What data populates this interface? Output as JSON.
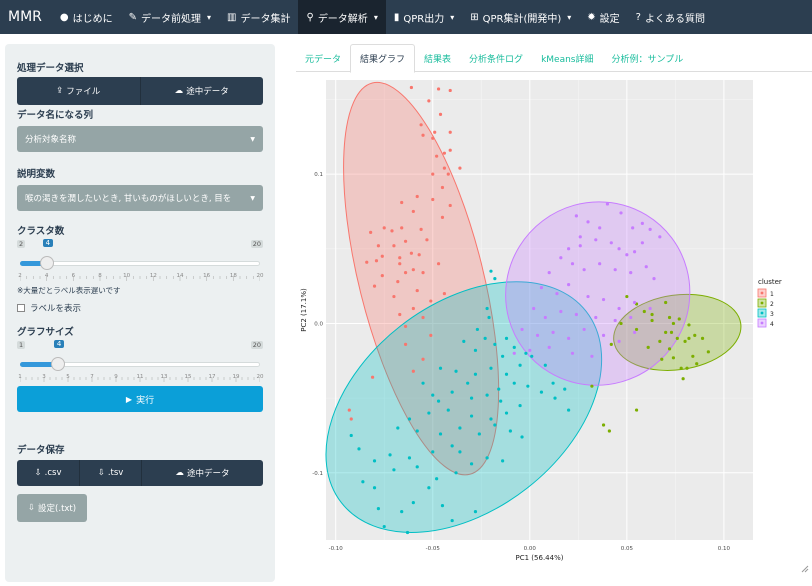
{
  "navbar": {
    "brand": "MMR",
    "items": [
      {
        "icon": "●",
        "icon_name": "play-circle-icon",
        "label": "はじめに",
        "caret": false,
        "active": false
      },
      {
        "icon": "✎",
        "icon_name": "wrench-icon",
        "label": "データ前処理",
        "caret": true,
        "active": false
      },
      {
        "icon": "▥",
        "icon_name": "area-chart-icon",
        "label": "データ集計",
        "caret": false,
        "active": false
      },
      {
        "icon": "⚲",
        "icon_name": "search-icon",
        "label": "データ解析",
        "caret": true,
        "active": true
      },
      {
        "icon": "▮",
        "icon_name": "file-icon",
        "label": "QPR出力",
        "caret": true,
        "active": false
      },
      {
        "icon": "⊞",
        "icon_name": "table-icon",
        "label": "QPR集計(開発中)",
        "caret": true,
        "active": false
      },
      {
        "icon": "✹",
        "icon_name": "gear-icon",
        "label": "設定",
        "caret": false,
        "active": false
      },
      {
        "icon": "?",
        "icon_name": "question-icon",
        "label": "よくある質問",
        "caret": false,
        "active": false
      }
    ]
  },
  "sidebar": {
    "data_select_label": "処理データ選択",
    "file_button": "ファイル",
    "midway_button": "途中データ",
    "name_column_label": "データ名になる列",
    "name_column_value": "分析対象名称",
    "explanatory_label": "説明変数",
    "explanatory_value": "喉の渇きを潤したいとき, 甘いものがほしいとき, 目を",
    "cluster_label": "クラスタ数",
    "cluster_slider": {
      "min": "2",
      "max": "20",
      "value": "4",
      "value_num": 4,
      "min_num": 2,
      "max_num": 20,
      "ticks": [
        "2",
        "4",
        "6",
        "8",
        "10",
        "12",
        "14",
        "16",
        "18",
        "20"
      ]
    },
    "note": "※大量だとラベル表示遅いです",
    "show_labels": "ラベルを表示",
    "graph_size_label": "グラフサイズ",
    "size_slider": {
      "min": "1",
      "max": "20",
      "value": "4",
      "value_num": 4,
      "min_num": 1,
      "max_num": 20,
      "ticks": [
        "1",
        "3",
        "5",
        "7",
        "9",
        "11",
        "13",
        "15",
        "17",
        "19",
        "20"
      ]
    },
    "run_button": "実行",
    "save_label": "データ保存",
    "csv_button": ".csv",
    "tsv_button": ".tsv",
    "save_midway_button": "途中データ",
    "settings_button": "設定(.txt)"
  },
  "tabs": [
    {
      "label": "元データ",
      "active": false
    },
    {
      "label": "結果グラフ",
      "active": true
    },
    {
      "label": "結果表",
      "active": false
    },
    {
      "label": "分析条件ログ",
      "active": false
    },
    {
      "label": "kMeans詳細",
      "active": false
    },
    {
      "label": "分析例：サンプル",
      "active": false
    }
  ],
  "chart_data": {
    "type": "scatter",
    "xlabel": "PC1 (56.44%)",
    "ylabel": "PC2 (17.1%)",
    "xlim": [
      -0.105,
      0.115
    ],
    "ylim": [
      -0.145,
      0.163
    ],
    "xticks": [
      -0.1,
      -0.05,
      0.0,
      0.05,
      0.1
    ],
    "xtick_labels": [
      "-0.10",
      "-0.05",
      "0.00",
      "0.05",
      "0.10"
    ],
    "yticks": [
      -0.1,
      0.0,
      0.1
    ],
    "ytick_labels": [
      "-0.1",
      "0.0",
      "0.1"
    ],
    "grid": true,
    "legend": {
      "title": "cluster",
      "position": "right",
      "entries": [
        "1",
        "2",
        "3",
        "4"
      ]
    },
    "series": [
      {
        "name": "1",
        "color": "#F8766D",
        "ellipse": {
          "cx": -0.056,
          "cy": 0.03,
          "rx": 0.032,
          "ry": 0.135,
          "angle": -14
        },
        "points": [
          [
            -0.061,
            0.158
          ],
          [
            -0.047,
            0.157
          ],
          [
            -0.041,
            0.156
          ],
          [
            -0.052,
            0.149
          ],
          [
            -0.046,
            0.14
          ],
          [
            -0.056,
            0.133
          ],
          [
            -0.049,
            0.128
          ],
          [
            -0.05,
            0.124
          ],
          [
            -0.055,
            0.126
          ],
          [
            -0.041,
            0.128
          ],
          [
            -0.044,
            0.114
          ],
          [
            -0.041,
            0.116
          ],
          [
            -0.048,
            0.112
          ],
          [
            -0.036,
            0.104
          ],
          [
            -0.044,
            0.104
          ],
          [
            -0.05,
            0.1
          ],
          [
            -0.042,
            0.1
          ],
          [
            -0.045,
            0.091
          ],
          [
            -0.058,
            0.085
          ],
          [
            -0.066,
            0.081
          ],
          [
            -0.05,
            0.083
          ],
          [
            -0.041,
            0.079
          ],
          [
            -0.06,
            0.075
          ],
          [
            -0.075,
            0.064
          ],
          [
            -0.082,
            0.061
          ],
          [
            -0.071,
            0.062
          ],
          [
            -0.066,
            0.064
          ],
          [
            -0.056,
            0.063
          ],
          [
            -0.064,
            0.055
          ],
          [
            -0.07,
            0.052
          ],
          [
            -0.078,
            0.052
          ],
          [
            -0.061,
            0.047
          ],
          [
            -0.076,
            0.045
          ],
          [
            -0.057,
            0.046
          ],
          [
            -0.047,
            0.04
          ],
          [
            -0.067,
            0.044
          ],
          [
            -0.079,
            0.042
          ],
          [
            -0.084,
            0.041
          ],
          [
            -0.067,
            0.04
          ],
          [
            -0.06,
            0.036
          ],
          [
            -0.055,
            0.034
          ],
          [
            -0.064,
            0.034
          ],
          [
            -0.076,
            0.032
          ],
          [
            -0.068,
            0.028
          ],
          [
            -0.08,
            0.025
          ],
          [
            -0.058,
            0.022
          ],
          [
            -0.07,
            0.018
          ],
          [
            -0.051,
            0.015
          ],
          [
            -0.044,
            0.02
          ],
          [
            -0.06,
            0.01
          ],
          [
            -0.067,
            0.006
          ],
          [
            -0.055,
            0.004
          ],
          [
            -0.064,
            -0.002
          ],
          [
            -0.051,
            -0.008
          ],
          [
            -0.064,
            -0.014
          ],
          [
            -0.055,
            -0.024
          ],
          [
            -0.081,
            -0.036
          ],
          [
            -0.06,
            -0.032
          ],
          [
            -0.093,
            -0.058
          ],
          [
            -0.092,
            -0.064
          ],
          [
            -0.045,
            0.071
          ],
          [
            -0.053,
            0.056
          ]
        ]
      },
      {
        "name": "2",
        "color": "#7CAE00",
        "ellipse": {
          "cx": 0.076,
          "cy": -0.006,
          "rx": 0.033,
          "ry": 0.025,
          "angle": -8
        },
        "points": [
          [
            0.05,
            0.018
          ],
          [
            0.055,
            0.013
          ],
          [
            0.059,
            0.008
          ],
          [
            0.063,
            0.006
          ],
          [
            0.063,
            0.002
          ],
          [
            0.07,
            0.014
          ],
          [
            0.072,
            0.004
          ],
          [
            0.074,
            0.0
          ],
          [
            0.077,
            0.003
          ],
          [
            0.082,
            -0.001
          ],
          [
            0.082,
            -0.01
          ],
          [
            0.07,
            -0.006
          ],
          [
            0.067,
            -0.012
          ],
          [
            0.073,
            -0.006
          ],
          [
            0.076,
            -0.01
          ],
          [
            0.08,
            -0.012
          ],
          [
            0.085,
            -0.008
          ],
          [
            0.089,
            -0.01
          ],
          [
            0.072,
            -0.017
          ],
          [
            0.074,
            -0.023
          ],
          [
            0.078,
            -0.03
          ],
          [
            0.081,
            -0.03
          ],
          [
            0.086,
            -0.027
          ],
          [
            0.092,
            -0.019
          ],
          [
            0.055,
            -0.004
          ],
          [
            0.061,
            -0.016
          ],
          [
            0.068,
            -0.024
          ],
          [
            0.047,
            0.0
          ],
          [
            0.042,
            -0.014
          ],
          [
            0.055,
            -0.058
          ],
          [
            0.038,
            -0.068
          ],
          [
            0.041,
            -0.072
          ],
          [
            0.032,
            -0.042
          ],
          [
            0.079,
            -0.037
          ],
          [
            0.084,
            -0.022
          ]
        ]
      },
      {
        "name": "3",
        "color": "#00BFC4",
        "ellipse": {
          "cx": -0.034,
          "cy": -0.056,
          "rx": 0.053,
          "ry": 0.104,
          "angle": 52
        },
        "points": [
          [
            -0.02,
            0.035
          ],
          [
            -0.018,
            0.03
          ],
          [
            -0.022,
            0.01
          ],
          [
            -0.027,
            -0.004
          ],
          [
            -0.021,
            0.004
          ],
          [
            -0.023,
            -0.01
          ],
          [
            -0.034,
            -0.012
          ],
          [
            -0.028,
            -0.018
          ],
          [
            -0.018,
            -0.014
          ],
          [
            -0.012,
            -0.01
          ],
          [
            -0.008,
            -0.016
          ],
          [
            -0.002,
            -0.02
          ],
          [
            0.001,
            -0.022
          ],
          [
            0.008,
            -0.028
          ],
          [
            -0.005,
            -0.028
          ],
          [
            -0.012,
            -0.034
          ],
          [
            -0.02,
            -0.03
          ],
          [
            -0.028,
            -0.034
          ],
          [
            -0.038,
            -0.032
          ],
          [
            -0.046,
            -0.03
          ],
          [
            -0.055,
            -0.04
          ],
          [
            -0.05,
            -0.048
          ],
          [
            -0.04,
            -0.046
          ],
          [
            -0.03,
            -0.05
          ],
          [
            -0.022,
            -0.048
          ],
          [
            -0.016,
            -0.044
          ],
          [
            -0.008,
            -0.04
          ],
          [
            -0.001,
            -0.042
          ],
          [
            0.006,
            -0.046
          ],
          [
            0.012,
            -0.04
          ],
          [
            0.018,
            -0.044
          ],
          [
            -0.005,
            -0.055
          ],
          [
            -0.012,
            -0.06
          ],
          [
            -0.02,
            -0.064
          ],
          [
            -0.03,
            -0.062
          ],
          [
            -0.042,
            -0.058
          ],
          [
            -0.052,
            -0.06
          ],
          [
            -0.062,
            -0.064
          ],
          [
            -0.068,
            -0.07
          ],
          [
            -0.058,
            -0.072
          ],
          [
            -0.046,
            -0.074
          ],
          [
            -0.036,
            -0.07
          ],
          [
            -0.026,
            -0.074
          ],
          [
            -0.018,
            -0.068
          ],
          [
            -0.01,
            -0.072
          ],
          [
            -0.004,
            -0.076
          ],
          [
            -0.04,
            -0.082
          ],
          [
            -0.05,
            -0.086
          ],
          [
            -0.062,
            -0.09
          ],
          [
            -0.072,
            -0.088
          ],
          [
            -0.08,
            -0.092
          ],
          [
            -0.088,
            -0.084
          ],
          [
            -0.092,
            -0.075
          ],
          [
            -0.086,
            -0.106
          ],
          [
            -0.08,
            -0.11
          ],
          [
            -0.07,
            -0.098
          ],
          [
            -0.058,
            -0.096
          ],
          [
            -0.048,
            -0.104
          ],
          [
            -0.038,
            -0.1
          ],
          [
            -0.03,
            -0.094
          ],
          [
            -0.022,
            -0.09
          ],
          [
            -0.014,
            -0.092
          ],
          [
            -0.036,
            -0.086
          ],
          [
            -0.078,
            -0.124
          ],
          [
            -0.06,
            -0.12
          ],
          [
            -0.075,
            -0.136
          ],
          [
            -0.063,
            -0.14
          ],
          [
            -0.04,
            -0.132
          ],
          [
            -0.028,
            -0.126
          ],
          [
            -0.066,
            -0.126
          ],
          [
            -0.052,
            -0.11
          ],
          [
            -0.045,
            -0.122
          ],
          [
            0.013,
            -0.05
          ],
          [
            0.02,
            -0.058
          ],
          [
            -0.032,
            -0.04
          ],
          [
            -0.014,
            -0.022
          ],
          [
            -0.015,
            -0.052
          ],
          [
            -0.047,
            -0.052
          ]
        ]
      },
      {
        "name": "4",
        "color": "#C77CFF",
        "ellipse": {
          "cx": 0.035,
          "cy": 0.02,
          "rx": 0.047,
          "ry": 0.062,
          "angle": 53
        },
        "points": [
          [
            0.04,
            0.08
          ],
          [
            0.047,
            0.074
          ],
          [
            0.053,
            0.064
          ],
          [
            0.058,
            0.067
          ],
          [
            0.062,
            0.063
          ],
          [
            0.067,
            0.058
          ],
          [
            0.024,
            0.072
          ],
          [
            0.03,
            0.068
          ],
          [
            0.036,
            0.064
          ],
          [
            0.026,
            0.058
          ],
          [
            0.034,
            0.056
          ],
          [
            0.042,
            0.054
          ],
          [
            0.046,
            0.05
          ],
          [
            0.05,
            0.046
          ],
          [
            0.054,
            0.048
          ],
          [
            0.02,
            0.05
          ],
          [
            0.016,
            0.044
          ],
          [
            0.022,
            0.04
          ],
          [
            0.028,
            0.036
          ],
          [
            0.036,
            0.04
          ],
          [
            0.044,
            0.036
          ],
          [
            0.052,
            0.034
          ],
          [
            0.06,
            0.038
          ],
          [
            0.064,
            0.03
          ],
          [
            0.01,
            0.034
          ],
          [
            0.006,
            0.024
          ],
          [
            0.014,
            0.02
          ],
          [
            0.02,
            0.026
          ],
          [
            0.03,
            0.018
          ],
          [
            0.038,
            0.016
          ],
          [
            0.046,
            0.01
          ],
          [
            0.054,
            0.014
          ],
          [
            0.062,
            0.01
          ],
          [
            0.002,
            0.01
          ],
          [
            0.008,
            0.004
          ],
          [
            0.016,
            0.008
          ],
          [
            0.024,
            0.006
          ],
          [
            0.034,
            0.004
          ],
          [
            0.044,
            0.002
          ],
          [
            0.052,
            0.004
          ],
          [
            -0.004,
            -0.004
          ],
          [
            0.004,
            -0.008
          ],
          [
            0.012,
            -0.006
          ],
          [
            0.02,
            -0.01
          ],
          [
            0.028,
            -0.004
          ],
          [
            0.038,
            -0.008
          ],
          [
            0.046,
            -0.012
          ],
          [
            0.054,
            -0.006
          ],
          [
            -0.008,
            -0.02
          ],
          [
            0.0,
            -0.018
          ],
          [
            0.01,
            -0.016
          ],
          [
            0.022,
            -0.02
          ],
          [
            0.032,
            -0.022
          ],
          [
            0.026,
            0.052
          ],
          [
            0.058,
            0.054
          ]
        ]
      }
    ]
  }
}
